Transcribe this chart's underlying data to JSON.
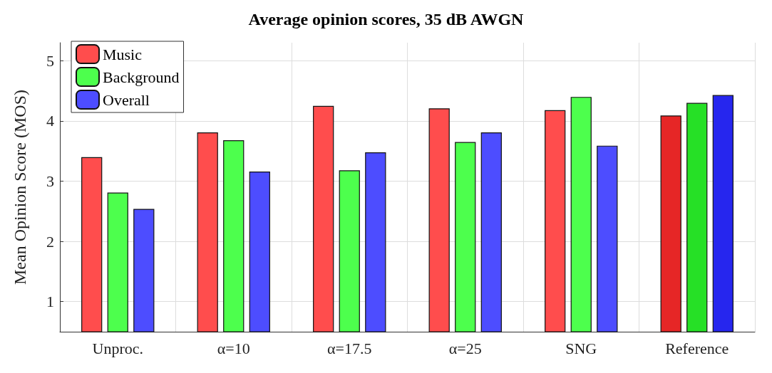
{
  "chart_data": {
    "type": "bar",
    "title": "Average opinion scores, 35 dB AWGN",
    "ylabel": "Mean Opinion Score (MOS)",
    "categories": [
      "Unproc.",
      "α=10",
      "α=17.5",
      "α=25",
      "SNG",
      "Reference"
    ],
    "series": [
      {
        "name": "Music",
        "color": "#ff4d4d",
        "colors": [
          "#ff4d4d",
          "#ff4d4d",
          "#ff4d4d",
          "#ff4d4d",
          "#ff4d4d",
          "#e62626"
        ],
        "values": [
          3.4,
          3.81,
          4.25,
          4.21,
          4.18,
          4.09
        ]
      },
      {
        "name": "Background",
        "color": "#4dff4d",
        "colors": [
          "#4dff4d",
          "#4dff4d",
          "#4dff4d",
          "#4dff4d",
          "#4dff4d",
          "#26e026"
        ],
        "values": [
          2.81,
          3.68,
          3.18,
          3.65,
          4.4,
          4.3
        ]
      },
      {
        "name": "Overall",
        "color": "#4d4dff",
        "colors": [
          "#4d4dff",
          "#4d4dff",
          "#4d4dff",
          "#4d4dff",
          "#4d4dff",
          "#2626ee"
        ],
        "values": [
          2.54,
          3.16,
          3.48,
          3.81,
          3.59,
          4.43
        ]
      }
    ],
    "ylim": [
      0.5,
      5.3
    ],
    "yticks": [
      1,
      2,
      3,
      4,
      5
    ],
    "grid": true,
    "legend": "top left"
  }
}
